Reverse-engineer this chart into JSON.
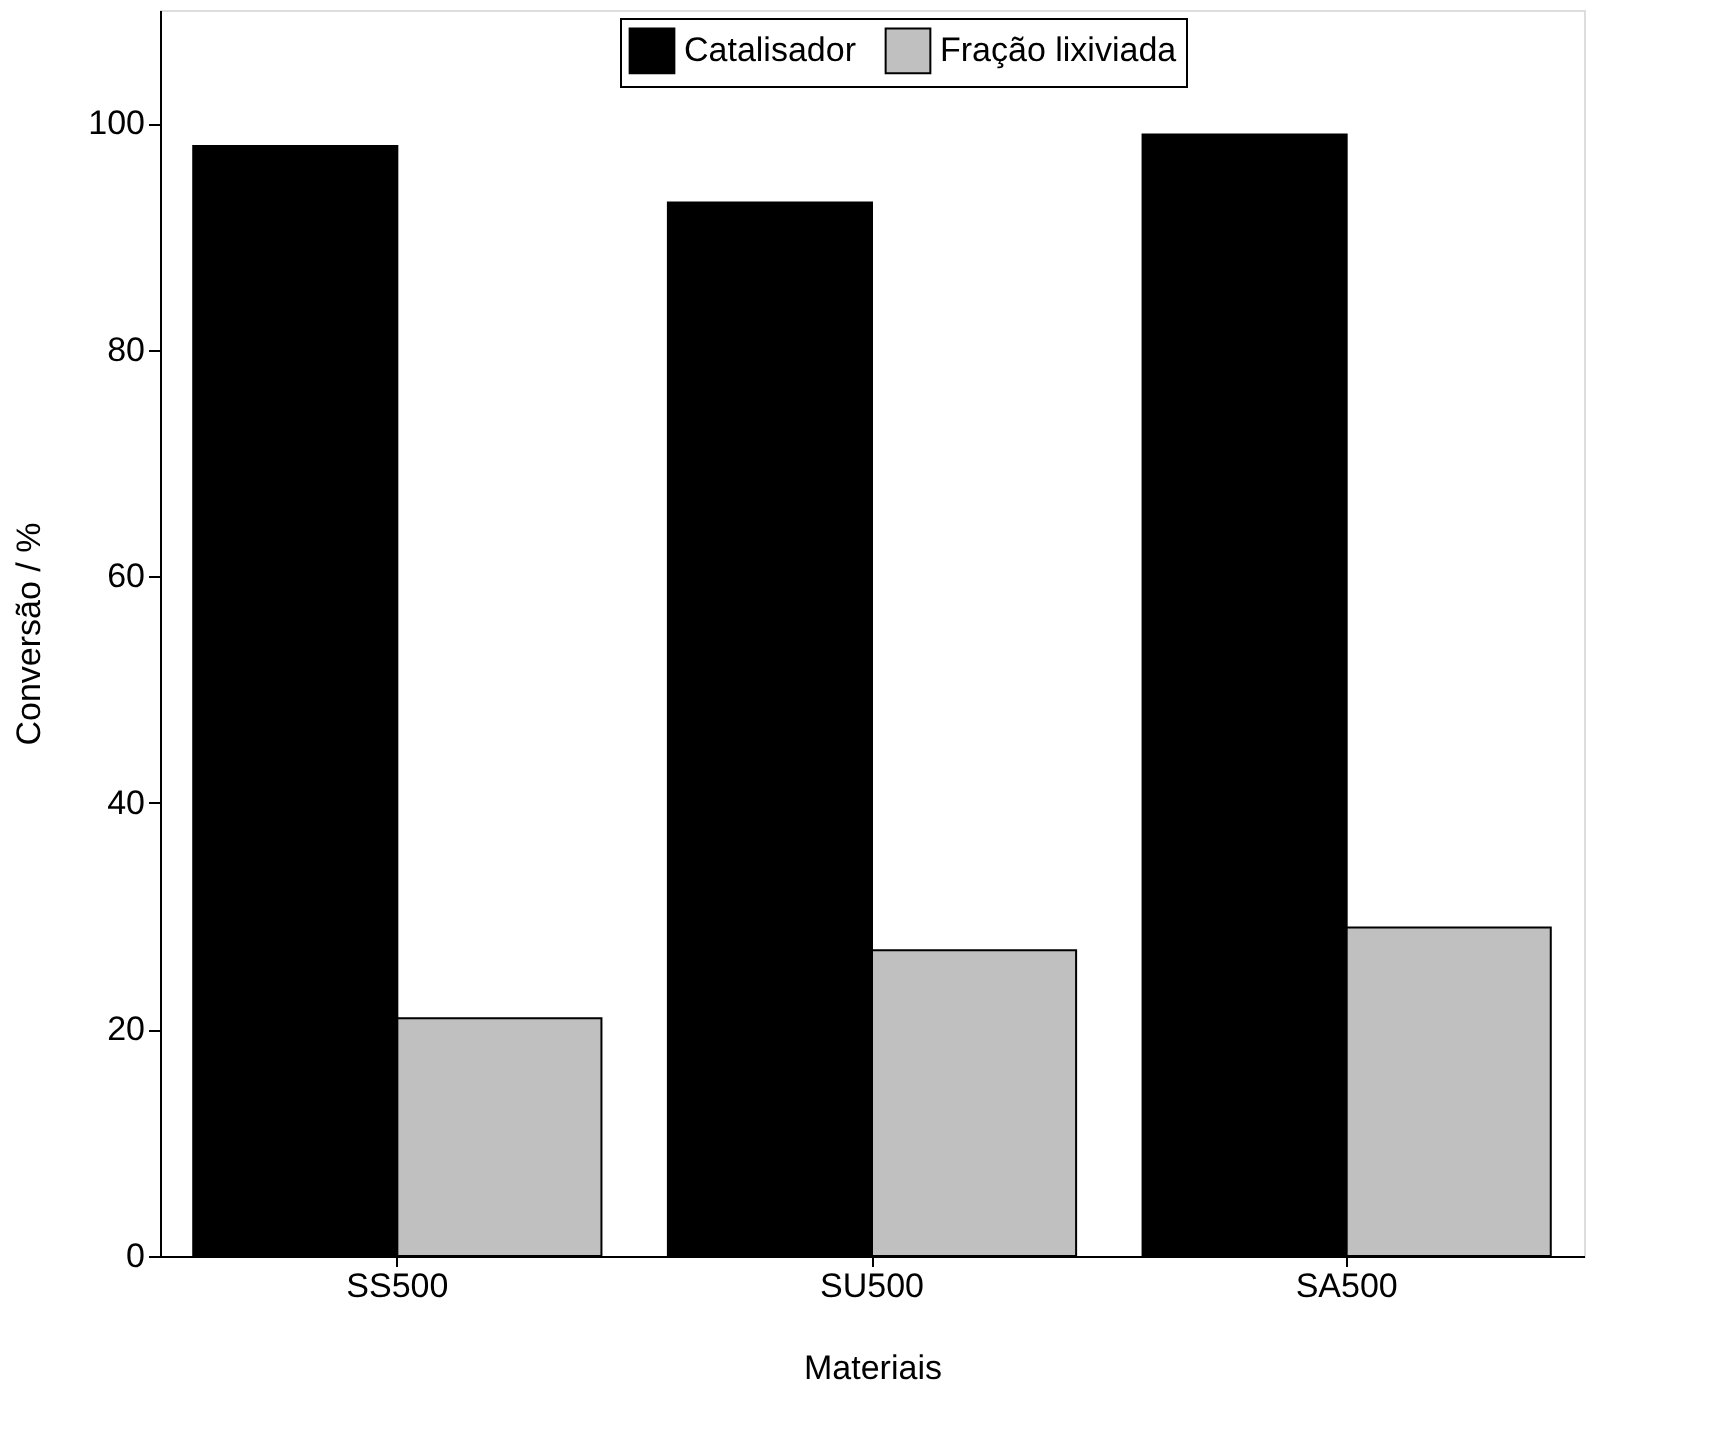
{
  "chart_data": {
    "type": "bar",
    "xlabel": "Materiais",
    "ylabel": "Conversão / %",
    "categories": [
      "SS500",
      "SU500",
      "SA500"
    ],
    "series": [
      {
        "name": "Catalisador",
        "color": "#000000",
        "values": [
          98,
          93,
          99
        ]
      },
      {
        "name": "Fração lixiviada",
        "color": "#c0c0c0",
        "values": [
          21,
          27,
          29
        ]
      }
    ],
    "ylim": [
      0,
      110
    ],
    "yticks": [
      0,
      20,
      40,
      60,
      80,
      100
    ],
    "grid": false,
    "legend": "top"
  }
}
